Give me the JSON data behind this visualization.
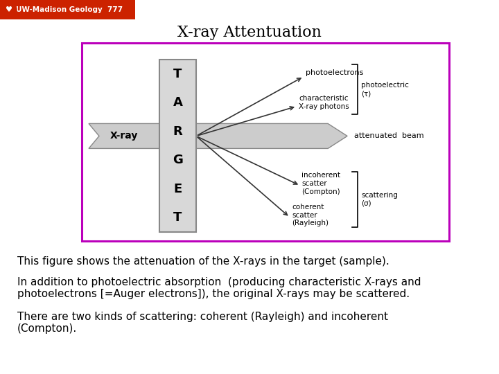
{
  "title": "X-ray Attentuation",
  "title_fontsize": 16,
  "background_color": "#ffffff",
  "border_color": "#bb00bb",
  "header_bg": "#cc2200",
  "header_text": "UW-Madison Geology  777",
  "body_texts": [
    "This figure shows the attenuation of the X-rays in the target (sample).",
    "In addition to photoelectric absorption  (producing characteristic X-rays and\nphotoelectrons [=Auger electrons]), the original X-rays may be scattered.",
    "There are two kinds of scattering: coherent (Rayleigh) and incoherent\n(Compton)."
  ],
  "body_fontsize": 11,
  "arrow_color": "#999999",
  "target_fill": "#d8d8d8",
  "target_edge": "#888888",
  "line_color": "#333333"
}
